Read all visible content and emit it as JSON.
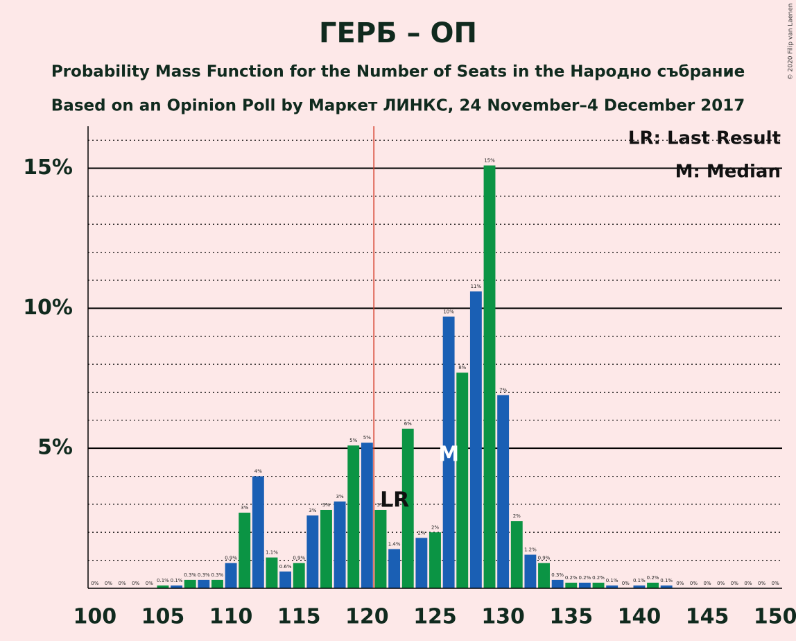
{
  "chart_data": {
    "type": "bar",
    "title": "ГЕРБ – ОП",
    "subtitle": "Probability Mass Function for the Number of Seats in the Народно събрание",
    "subtitle2": "Based on an Opinion Poll by Маркет ЛИНКС, 24 November–4 December 2017",
    "copyright": "© 2020 Filip van Laenen",
    "x": [
      100,
      101,
      102,
      103,
      104,
      105,
      106,
      107,
      108,
      109,
      110,
      111,
      112,
      113,
      114,
      115,
      116,
      117,
      118,
      119,
      120,
      121,
      122,
      123,
      124,
      125,
      126,
      127,
      128,
      129,
      130,
      131,
      132,
      133,
      134,
      135,
      136,
      137,
      138,
      139,
      140,
      141,
      142,
      143,
      144,
      145,
      146,
      147,
      148,
      149,
      150
    ],
    "values": [
      0,
      0,
      0,
      0,
      0,
      0.1,
      0.1,
      0.3,
      0.3,
      0.3,
      0.9,
      2.7,
      4,
      1.1,
      0.6,
      0.9,
      2.6,
      2.8,
      3.1,
      5.1,
      5.2,
      2.8,
      1.4,
      5.7,
      1.8,
      2,
      9.7,
      7.7,
      10.6,
      15.1,
      6.9,
      2.4,
      1.2,
      0.9,
      0.3,
      0.2,
      0.2,
      0.2,
      0.1,
      0,
      0.1,
      0.2,
      0.1,
      0,
      0,
      0,
      0,
      0,
      0,
      0,
      0
    ],
    "value_labels": [
      "0%",
      "0%",
      "0%",
      "0%",
      "0%",
      "0.1%",
      "0.1%",
      "0.3%",
      "0.3%",
      "0.3%",
      "0.9%",
      "3%",
      "4%",
      "1.1%",
      "0.6%",
      "0.9%",
      "3%",
      "3%",
      "3%",
      "5%",
      "5%",
      "3%",
      "1.4%",
      "6%",
      "2%",
      "2%",
      "10%",
      "8%",
      "11%",
      "15%",
      "7%",
      "2%",
      "1.2%",
      "0.9%",
      "0.3%",
      "0.2%",
      "0.2%",
      "0.2%",
      "0.1%",
      "0%",
      "0.1%",
      "0.2%",
      "0.1%",
      "0%",
      "0%",
      "0%",
      "0%",
      "0%",
      "0%",
      "0%",
      "0%"
    ],
    "colors": [
      "#1a5fb4",
      "#0b9444",
      "#1a5fb4",
      "#0b9444",
      "#1a5fb4",
      "#0b9444",
      "#1a5fb4",
      "#0b9444",
      "#1a5fb4",
      "#0b9444",
      "#1a5fb4",
      "#0b9444",
      "#1a5fb4",
      "#0b9444",
      "#1a5fb4",
      "#0b9444",
      "#1a5fb4",
      "#0b9444",
      "#1a5fb4",
      "#0b9444",
      "#1a5fb4",
      "#0b9444",
      "#1a5fb4",
      "#0b9444",
      "#1a5fb4",
      "#0b9444",
      "#1a5fb4",
      "#0b9444",
      "#1a5fb4",
      "#0b9444",
      "#1a5fb4",
      "#0b9444",
      "#1a5fb4",
      "#0b9444",
      "#1a5fb4",
      "#0b9444",
      "#1a5fb4",
      "#0b9444",
      "#1a5fb4",
      "#0b9444",
      "#1a5fb4",
      "#0b9444",
      "#1a5fb4",
      "#0b9444",
      "#1a5fb4",
      "#0b9444",
      "#1a5fb4",
      "#0b9444",
      "#1a5fb4",
      "#0b9444",
      "#1a5fb4"
    ],
    "xlim": [
      99.5,
      150.5
    ],
    "xticks": [
      100,
      105,
      110,
      115,
      120,
      125,
      130,
      135,
      140,
      145,
      150
    ],
    "ylim": [
      0,
      16.5
    ],
    "yticks": [
      {
        "value": 5,
        "label": "5%"
      },
      {
        "value": 10,
        "label": "10%"
      },
      {
        "value": 15,
        "label": "15%"
      }
    ],
    "minor_gridlines": [
      1,
      2,
      3,
      4,
      6,
      7,
      8,
      9,
      11,
      12,
      13,
      14,
      16
    ],
    "last_result": {
      "seat": 121,
      "label": "LR"
    },
    "median": {
      "seat": 126,
      "label": "M"
    },
    "legend": [
      "LR: Last Result",
      "M: Median"
    ],
    "legend_position": "top-right"
  }
}
